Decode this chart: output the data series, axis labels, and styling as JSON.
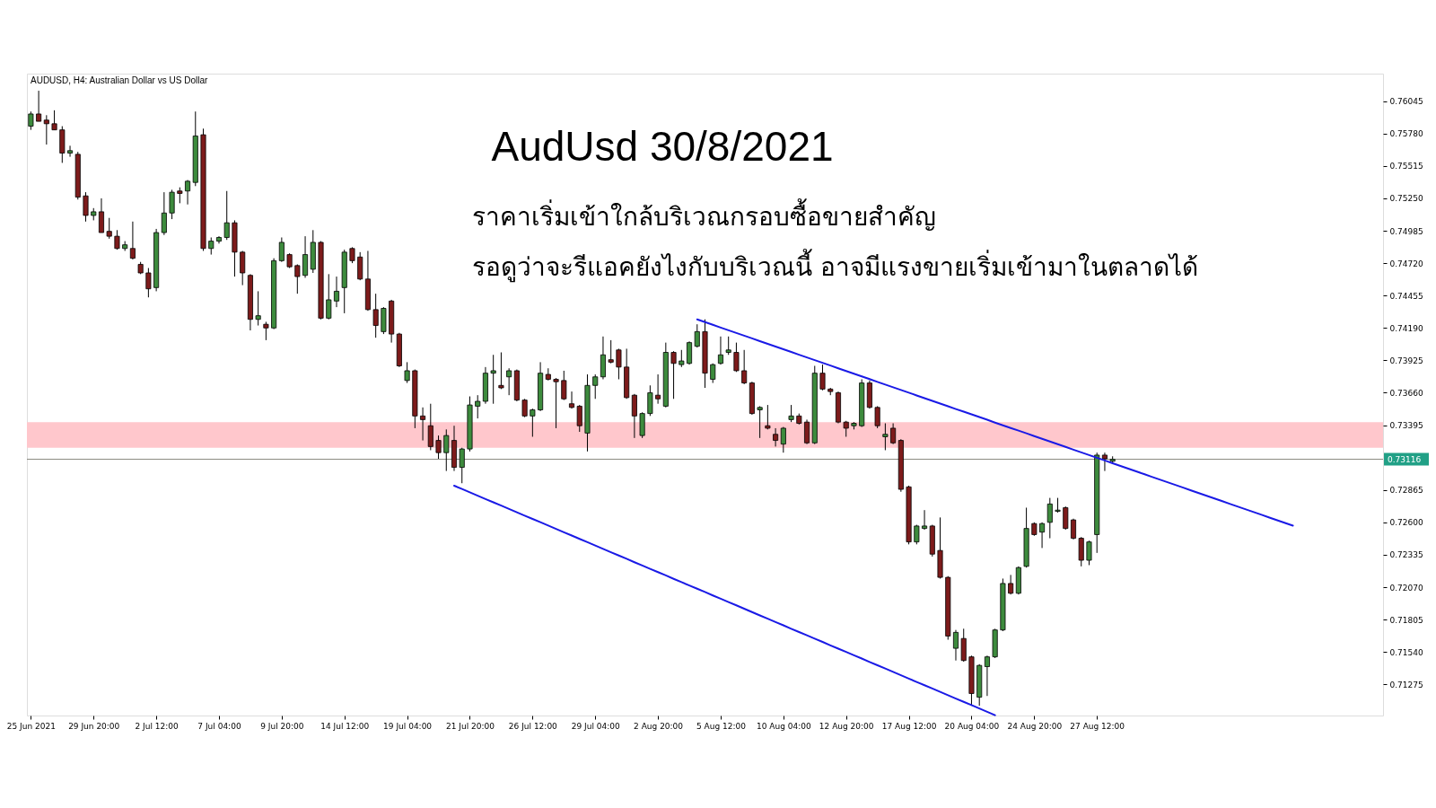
{
  "chart_data": {
    "type": "candlestick",
    "title": "AudUsd 30/8/2021",
    "annotations": [
      "AUDUSD, H4: Australian Dollar vs US Dollar",
      "ราคาเริ่มเข้าใกล้บริเวณกรอบซื้อขายสำคัญ",
      "รอดูว่าจะรีแอคยังไงกับบริเวณนี้ อาจมีแรงขายเริ่มเข้ามาในตลาดได้"
    ],
    "categories": [
      "25 Jun 2021",
      null,
      null,
      null,
      null,
      null,
      null,
      null,
      "29 Jun 20:00",
      null,
      null,
      null,
      null,
      null,
      null,
      null,
      "2 Jul 12:00",
      null,
      null,
      null,
      null,
      null,
      null,
      null,
      "7 Jul 04:00",
      null,
      null,
      null,
      null,
      null,
      null,
      null,
      "9 Jul 20:00",
      null,
      null,
      null,
      null,
      null,
      null,
      null,
      "14 Jul 12:00",
      null,
      null,
      null,
      null,
      null,
      null,
      null,
      "19 Jul 04:00",
      null,
      null,
      null,
      null,
      null,
      null,
      null,
      "21 Jul 20:00",
      null,
      null,
      null,
      null,
      null,
      null,
      null,
      "26 Jul 12:00",
      null,
      null,
      null,
      null,
      null,
      null,
      null,
      "29 Jul 04:00",
      null,
      null,
      null,
      null,
      null,
      null,
      null,
      "2 Aug 20:00",
      null,
      null,
      null,
      null,
      null,
      null,
      null,
      "5 Aug 12:00",
      null,
      null,
      null,
      null,
      null,
      null,
      null,
      "10 Aug 04:00",
      null,
      null,
      null,
      null,
      null,
      null,
      null,
      "12 Aug 20:00",
      null,
      null,
      null,
      null,
      null,
      null,
      null,
      "17 Aug 12:00",
      null,
      null,
      null,
      null,
      null,
      null,
      null,
      "20 Aug 04:00",
      null,
      null,
      null,
      null,
      null,
      null,
      null,
      "24 Aug 20:00",
      null,
      null,
      null,
      null,
      null,
      null,
      null,
      "27 Aug 12:00",
      null,
      null,
      null,
      null,
      null,
      null,
      null,
      null,
      null,
      null,
      null,
      null,
      null,
      null,
      null,
      null,
      null,
      null,
      null,
      null,
      null,
      null,
      null,
      null,
      null,
      null,
      null,
      null,
      null,
      null,
      null,
      null,
      null,
      null,
      null,
      null
    ],
    "ohlc": [
      [
        0.7584,
        0.7596,
        0.7581,
        0.7594
      ],
      [
        0.7594,
        0.7613,
        0.7588,
        0.7588
      ],
      [
        0.7589,
        0.7593,
        0.7569,
        0.7586
      ],
      [
        0.7586,
        0.7597,
        0.7581,
        0.7581
      ],
      [
        0.7581,
        0.7584,
        0.7554,
        0.7562
      ],
      [
        0.7562,
        0.7568,
        0.7559,
        0.7564
      ],
      [
        0.7561,
        0.7563,
        0.7524,
        0.7526
      ],
      [
        0.7527,
        0.753,
        0.7506,
        0.7511
      ],
      [
        0.7511,
        0.7517,
        0.7507,
        0.7514
      ],
      [
        0.7514,
        0.7525,
        0.7497,
        0.7497
      ],
      [
        0.7498,
        0.7509,
        0.7492,
        0.7494
      ],
      [
        0.7494,
        0.7499,
        0.7483,
        0.7484
      ],
      [
        0.7484,
        0.749,
        0.7482,
        0.7487
      ],
      [
        0.7484,
        0.7506,
        0.7475,
        0.7476
      ],
      [
        0.7471,
        0.7473,
        0.7463,
        0.7464
      ],
      [
        0.7464,
        0.7468,
        0.7444,
        0.7451
      ],
      [
        0.7452,
        0.75,
        0.7449,
        0.7497
      ],
      [
        0.7497,
        0.753,
        0.7495,
        0.7513
      ],
      [
        0.7513,
        0.7532,
        0.7508,
        0.753
      ],
      [
        0.7531,
        0.7534,
        0.7521,
        0.7529
      ],
      [
        0.7531,
        0.754,
        0.752,
        0.7539
      ],
      [
        0.7538,
        0.7596,
        0.7535,
        0.7576
      ],
      [
        0.7577,
        0.7582,
        0.7482,
        0.7484
      ],
      [
        0.7484,
        0.7493,
        0.7479,
        0.749
      ],
      [
        0.749,
        0.7494,
        0.7488,
        0.7493
      ],
      [
        0.7493,
        0.7531,
        0.7491,
        0.7505
      ],
      [
        0.7505,
        0.7507,
        0.7461,
        0.7481
      ],
      [
        0.7481,
        0.7482,
        0.7454,
        0.7464
      ],
      [
        0.7462,
        0.7463,
        0.7417,
        0.7426
      ],
      [
        0.7426,
        0.7449,
        0.7421,
        0.7429
      ],
      [
        0.7422,
        0.7424,
        0.7409,
        0.7419
      ],
      [
        0.7419,
        0.7476,
        0.7418,
        0.7474
      ],
      [
        0.7474,
        0.7493,
        0.7473,
        0.7489
      ],
      [
        0.7479,
        0.748,
        0.7468,
        0.7469
      ],
      [
        0.747,
        0.7471,
        0.7447,
        0.7461
      ],
      [
        0.7462,
        0.7494,
        0.746,
        0.7479
      ],
      [
        0.7467,
        0.7499,
        0.7464,
        0.7489
      ],
      [
        0.7489,
        0.749,
        0.7426,
        0.7427
      ],
      [
        0.7427,
        0.7463,
        0.7426,
        0.7442
      ],
      [
        0.7441,
        0.7461,
        0.7436,
        0.7449
      ],
      [
        0.7452,
        0.7483,
        0.7431,
        0.7481
      ],
      [
        0.7484,
        0.7485,
        0.7472,
        0.7474
      ],
      [
        0.7477,
        0.7481,
        0.7458,
        0.7459
      ],
      [
        0.7459,
        0.7482,
        0.7433,
        0.7434
      ],
      [
        0.7434,
        0.7447,
        0.7411,
        0.7421
      ],
      [
        0.7416,
        0.7436,
        0.7414,
        0.7435
      ],
      [
        0.7441,
        0.7442,
        0.7407,
        0.7414
      ],
      [
        0.7414,
        0.7415,
        0.7387,
        0.7388
      ],
      [
        0.7376,
        0.7391,
        0.7374,
        0.7384
      ],
      [
        0.7384,
        0.7385,
        0.7337,
        0.7347
      ],
      [
        0.7347,
        0.7354,
        0.7327,
        0.7344
      ],
      [
        0.7339,
        0.7357,
        0.7319,
        0.7322
      ],
      [
        0.7327,
        0.7331,
        0.7312,
        0.7317
      ],
      [
        0.7317,
        0.7336,
        0.7302,
        0.7331
      ],
      [
        0.7327,
        0.7339,
        0.7302,
        0.7305
      ],
      [
        0.7305,
        0.7321,
        0.7292,
        0.732
      ],
      [
        0.732,
        0.7363,
        0.7318,
        0.7356
      ],
      [
        0.7355,
        0.7364,
        0.7345,
        0.7359
      ],
      [
        0.7359,
        0.7387,
        0.7357,
        0.7382
      ],
      [
        0.7382,
        0.7397,
        0.7357,
        0.7384
      ],
      [
        0.7372,
        0.7399,
        0.7369,
        0.737
      ],
      [
        0.7379,
        0.7386,
        0.7364,
        0.7384
      ],
      [
        0.7384,
        0.7385,
        0.7359,
        0.736
      ],
      [
        0.736,
        0.7361,
        0.7346,
        0.7347
      ],
      [
        0.7347,
        0.7353,
        0.733,
        0.7352
      ],
      [
        0.7352,
        0.7391,
        0.7351,
        0.7382
      ],
      [
        0.7381,
        0.7386,
        0.7376,
        0.7377
      ],
      [
        0.7377,
        0.7378,
        0.7337,
        0.7375
      ],
      [
        0.7376,
        0.7384,
        0.736,
        0.7361
      ],
      [
        0.7357,
        0.7367,
        0.7353,
        0.7354
      ],
      [
        0.7355,
        0.7356,
        0.7334,
        0.7339
      ],
      [
        0.7333,
        0.7381,
        0.7318,
        0.7372
      ],
      [
        0.7372,
        0.7381,
        0.7361,
        0.7379
      ],
      [
        0.7379,
        0.7412,
        0.7377,
        0.7397
      ],
      [
        0.7393,
        0.7409,
        0.739,
        0.7391
      ],
      [
        0.7401,
        0.7402,
        0.7377,
        0.7387
      ],
      [
        0.7387,
        0.7402,
        0.7361,
        0.7362
      ],
      [
        0.7364,
        0.7365,
        0.7329,
        0.7347
      ],
      [
        0.7331,
        0.735,
        0.7329,
        0.7349
      ],
      [
        0.7349,
        0.7372,
        0.7347,
        0.7366
      ],
      [
        0.7364,
        0.7381,
        0.7357,
        0.7361
      ],
      [
        0.7355,
        0.7407,
        0.7354,
        0.7399
      ],
      [
        0.7399,
        0.74,
        0.7361,
        0.739
      ],
      [
        0.7389,
        0.7401,
        0.7387,
        0.7392
      ],
      [
        0.739,
        0.7408,
        0.7389,
        0.7407
      ],
      [
        0.7404,
        0.7422,
        0.7403,
        0.7416
      ],
      [
        0.7416,
        0.7426,
        0.737,
        0.7382
      ],
      [
        0.7377,
        0.739,
        0.7374,
        0.7389
      ],
      [
        0.739,
        0.7412,
        0.7389,
        0.7397
      ],
      [
        0.7399,
        0.7412,
        0.7397,
        0.7401
      ],
      [
        0.7399,
        0.7407,
        0.7383,
        0.7384
      ],
      [
        0.7384,
        0.7401,
        0.7373,
        0.7374
      ],
      [
        0.7374,
        0.7375,
        0.7348,
        0.7349
      ],
      [
        0.7352,
        0.7355,
        0.7329,
        0.7354
      ],
      [
        0.7339,
        0.7356,
        0.7336,
        0.7337
      ],
      [
        0.7332,
        0.7337,
        0.7322,
        0.7327
      ],
      [
        0.7324,
        0.7338,
        0.7317,
        0.7337
      ],
      [
        0.7344,
        0.7356,
        0.7342,
        0.7347
      ],
      [
        0.7347,
        0.7349,
        0.734,
        0.7341
      ],
      [
        0.7342,
        0.7344,
        0.7324,
        0.7325
      ],
      [
        0.7325,
        0.7388,
        0.7324,
        0.7382
      ],
      [
        0.7382,
        0.7389,
        0.7368,
        0.7369
      ],
      [
        0.7369,
        0.737,
        0.7364,
        0.7367
      ],
      [
        0.7366,
        0.7367,
        0.7341,
        0.7342
      ],
      [
        0.7342,
        0.7343,
        0.733,
        0.7337
      ],
      [
        0.7339,
        0.7342,
        0.7336,
        0.7341
      ],
      [
        0.7339,
        0.7377,
        0.7338,
        0.7374
      ],
      [
        0.7374,
        0.7376,
        0.7353,
        0.7354
      ],
      [
        0.7354,
        0.7355,
        0.7337,
        0.7339
      ],
      [
        0.733,
        0.7341,
        0.7319,
        0.7332
      ],
      [
        0.7337,
        0.7341,
        0.7324,
        0.7325
      ],
      [
        0.7327,
        0.7328,
        0.7285,
        0.7287
      ],
      [
        0.7289,
        0.729,
        0.7242,
        0.7244
      ],
      [
        0.7244,
        0.7258,
        0.7242,
        0.7257
      ],
      [
        0.7255,
        0.727,
        0.7254,
        0.7257
      ],
      [
        0.7257,
        0.7258,
        0.7232,
        0.7234
      ],
      [
        0.7237,
        0.7264,
        0.7214,
        0.7215
      ],
      [
        0.7215,
        0.7216,
        0.7164,
        0.7167
      ],
      [
        0.7157,
        0.7172,
        0.7147,
        0.717
      ],
      [
        0.7165,
        0.7173,
        0.7146,
        0.7147
      ],
      [
        0.715,
        0.7151,
        0.711,
        0.712
      ],
      [
        0.7117,
        0.7144,
        0.711,
        0.7143
      ],
      [
        0.7142,
        0.7151,
        0.7118,
        0.715
      ],
      [
        0.715,
        0.7173,
        0.7149,
        0.7172
      ],
      [
        0.7172,
        0.7214,
        0.7171,
        0.721
      ],
      [
        0.721,
        0.7217,
        0.7201,
        0.7202
      ],
      [
        0.7202,
        0.7224,
        0.7201,
        0.7223
      ],
      [
        0.7224,
        0.7272,
        0.7223,
        0.7255
      ],
      [
        0.7259,
        0.726,
        0.7249,
        0.725
      ],
      [
        0.7252,
        0.726,
        0.7239,
        0.7259
      ],
      [
        0.726,
        0.728,
        0.7247,
        0.7275
      ],
      [
        0.7269,
        0.728,
        0.7268,
        0.727
      ],
      [
        0.7272,
        0.7273,
        0.7254,
        0.7255
      ],
      [
        0.7262,
        0.7263,
        0.7246,
        0.7247
      ],
      [
        0.7247,
        0.7248,
        0.7224,
        0.7229
      ],
      [
        0.7229,
        0.7245,
        0.7225,
        0.7244
      ],
      [
        0.725,
        0.7317,
        0.7235,
        0.7315
      ],
      [
        0.7315,
        0.7317,
        0.7302,
        0.7312
      ],
      [
        0.731,
        0.7314,
        0.7308,
        0.73116
      ],
      null,
      null,
      null,
      null,
      null,
      null,
      null,
      null,
      null,
      null,
      null,
      null,
      null,
      null,
      null,
      null,
      null,
      null,
      null,
      null,
      null,
      null,
      null,
      null,
      null,
      null,
      null,
      null,
      null,
      null,
      null,
      null,
      null,
      null
    ],
    "colors": [
      "#3d8b3d",
      "#7d1b1b",
      "#7d1b1b",
      "#7d1b1b",
      "#7d1b1b",
      "#3d8b3d",
      "#7d1b1b",
      "#7d1b1b",
      "#3d8b3d",
      "#7d1b1b",
      "#7d1b1b",
      "#7d1b1b",
      "#3d8b3d",
      "#7d1b1b",
      "#7d1b1b",
      "#7d1b1b",
      "#3d8b3d",
      "#3d8b3d",
      "#3d8b3d",
      "#7d1b1b",
      "#3d8b3d",
      "#3d8b3d",
      "#7d1b1b",
      "#3d8b3d",
      "#3d8b3d",
      "#3d8b3d",
      "#7d1b1b",
      "#7d1b1b",
      "#7d1b1b",
      "#3d8b3d",
      "#7d1b1b",
      "#3d8b3d",
      "#3d8b3d",
      "#7d1b1b",
      "#7d1b1b",
      "#3d8b3d",
      "#3d8b3d",
      "#7d1b1b",
      "#3d8b3d",
      "#3d8b3d",
      "#3d8b3d",
      "#7d1b1b",
      "#7d1b1b",
      "#7d1b1b",
      "#7d1b1b",
      "#3d8b3d",
      "#7d1b1b",
      "#7d1b1b",
      "#3d8b3d",
      "#7d1b1b",
      "#7d1b1b",
      "#7d1b1b",
      "#7d1b1b",
      "#3d8b3d",
      "#7d1b1b",
      "#3d8b3d",
      "#3d8b3d",
      "#3d8b3d",
      "#3d8b3d",
      "#3d8b3d",
      "#7d1b1b",
      "#3d8b3d",
      "#7d1b1b",
      "#7d1b1b",
      "#3d8b3d",
      "#3d8b3d",
      "#7d1b1b",
      "#7d1b1b",
      "#7d1b1b",
      "#7d1b1b",
      "#7d1b1b",
      "#3d8b3d",
      "#3d8b3d",
      "#3d8b3d",
      "#7d1b1b",
      "#7d1b1b",
      "#7d1b1b",
      "#7d1b1b",
      "#3d8b3d",
      "#3d8b3d",
      "#7d1b1b",
      "#3d8b3d",
      "#7d1b1b",
      "#3d8b3d",
      "#3d8b3d",
      "#3d8b3d",
      "#7d1b1b",
      "#3d8b3d",
      "#3d8b3d",
      "#3d8b3d",
      "#7d1b1b",
      "#7d1b1b",
      "#7d1b1b",
      "#3d8b3d",
      "#7d1b1b",
      "#7d1b1b",
      "#3d8b3d",
      "#3d8b3d",
      "#7d1b1b",
      "#7d1b1b",
      "#3d8b3d",
      "#7d1b1b",
      "#7d1b1b",
      "#7d1b1b",
      "#7d1b1b",
      "#3d8b3d",
      "#3d8b3d",
      "#7d1b1b",
      "#7d1b1b",
      "#3d8b3d",
      "#7d1b1b",
      "#7d1b1b",
      "#7d1b1b",
      "#3d8b3d",
      "#3d8b3d",
      "#7d1b1b",
      "#7d1b1b",
      "#7d1b1b",
      "#3d8b3d",
      "#7d1b1b",
      "#7d1b1b",
      "#3d8b3d",
      "#3d8b3d",
      "#3d8b3d",
      "#3d8b3d",
      "#7d1b1b",
      "#3d8b3d",
      "#3d8b3d",
      "#7d1b1b",
      "#3d8b3d",
      "#3d8b3d",
      "#3d8b3d",
      "#7d1b1b",
      "#7d1b1b",
      "#7d1b1b",
      "#3d8b3d",
      "#3d8b3d",
      "#7d1b1b",
      "#3d8b3d",
      null,
      null,
      null,
      null,
      null,
      null,
      null,
      null,
      null,
      null,
      null,
      null,
      null,
      null,
      null,
      null,
      null,
      null,
      null,
      null,
      null,
      null,
      null,
      null,
      null,
      null,
      null,
      null,
      null,
      null,
      null,
      null,
      null,
      null
    ],
    "series": [
      {
        "type": "line",
        "color": "#1a1ae6",
        "values": [
          null,
          null,
          null,
          null,
          null,
          null,
          null,
          null,
          null,
          null,
          null,
          null,
          null,
          null,
          null,
          null,
          null,
          null,
          null,
          null,
          null,
          null,
          null,
          null,
          null,
          null,
          null,
          null,
          null,
          null,
          null,
          null,
          null,
          null,
          null,
          null,
          null,
          null,
          null,
          null,
          null,
          null,
          null,
          null,
          null,
          null,
          null,
          null,
          null,
          null,
          null,
          null,
          null,
          null,
          null,
          null,
          null,
          null,
          null,
          null,
          null,
          null,
          null,
          null,
          null,
          null,
          null,
          null,
          null,
          null,
          null,
          null,
          null,
          null,
          null,
          null,
          null,
          null,
          null,
          null,
          null,
          null,
          null,
          null,
          null,
          0.7426,
          0.74238,
          0.74216,
          0.74193,
          0.74171,
          0.74149,
          0.74127,
          0.74105,
          0.74082,
          0.7406,
          0.74038,
          0.74016,
          0.73994,
          0.73971,
          0.73949,
          0.73927,
          0.73905,
          0.73883,
          0.7386,
          0.73838,
          0.73816,
          0.73794,
          0.73772,
          0.73749,
          0.73727,
          0.73705,
          0.73683,
          0.73661,
          0.73638,
          0.73616,
          0.73594,
          0.73572,
          0.7355,
          0.73527,
          0.73505,
          0.73483,
          0.73461,
          0.73439,
          0.73416,
          0.73394,
          0.73372,
          0.7335,
          0.73328,
          0.73305,
          0.73283,
          0.73261,
          0.73239,
          0.73217,
          0.73194,
          0.73172,
          0.7315,
          0.73128,
          0.73106,
          0.73083,
          0.73061,
          0.73039,
          0.73017,
          0.72995,
          0.72972,
          0.7295,
          0.72928,
          0.72906,
          0.72884,
          0.72861,
          0.72839,
          0.72817,
          0.72795,
          0.72773,
          0.7275,
          0.72728,
          0.72706,
          0.72684,
          0.72662,
          0.72639,
          0.72617,
          0.72595,
          0.72573,
          null,
          null,
          null,
          null,
          null,
          null,
          null,
          null,
          null,
          null,
          null
        ]
      },
      {
        "type": "line",
        "color": "#1a1ae6",
        "values": [
          null,
          null,
          null,
          null,
          null,
          null,
          null,
          null,
          null,
          null,
          null,
          null,
          null,
          null,
          null,
          null,
          null,
          null,
          null,
          null,
          null,
          null,
          null,
          null,
          null,
          null,
          null,
          null,
          null,
          null,
          null,
          null,
          null,
          null,
          null,
          null,
          null,
          null,
          null,
          null,
          null,
          null,
          null,
          null,
          null,
          null,
          null,
          null,
          null,
          null,
          null,
          null,
          null,
          null,
          0.729,
          0.72873,
          0.72846,
          0.72818,
          0.72791,
          0.72764,
          0.72737,
          0.7271,
          0.72682,
          0.72655,
          0.72628,
          0.72601,
          0.72574,
          0.72546,
          0.72519,
          0.72492,
          0.72465,
          0.72438,
          0.7241,
          0.72383,
          0.72356,
          0.72329,
          0.72302,
          0.72274,
          0.72247,
          0.7222,
          0.72193,
          0.72166,
          0.72138,
          0.72111,
          0.72084,
          0.72057,
          0.7203,
          0.72002,
          0.71975,
          0.71948,
          0.71921,
          0.71894,
          0.71866,
          0.71839,
          0.71812,
          0.71785,
          0.71758,
          0.7173,
          0.71703,
          0.71676,
          0.71649,
          0.71622,
          0.71594,
          0.71567,
          0.7154,
          0.71513,
          0.71486,
          0.71458,
          0.71431,
          0.71404,
          0.71377,
          0.7135,
          0.71322,
          0.71295,
          0.71268,
          0.71241,
          0.71214,
          0.71186,
          0.71159,
          0.71132,
          0.71105,
          0.71078,
          0.7105,
          0.71023,
          null,
          null,
          null,
          null,
          null,
          null,
          null,
          null,
          null,
          null,
          null,
          null,
          null,
          null,
          null,
          null,
          null,
          null,
          null,
          null,
          null,
          null,
          null,
          null,
          null,
          null,
          null,
          null,
          null,
          null,
          null,
          null,
          null,
          null,
          null,
          null,
          null,
          null,
          null,
          null,
          null,
          null,
          null,
          null,
          null,
          null,
          null,
          null,
          null
        ]
      }
    ],
    "bands": [
      {
        "axis": "y",
        "from": 0.7321,
        "to": 0.7342,
        "color": "#ffc7cc"
      }
    ],
    "ref_lines": [
      {
        "axis": "y",
        "value": 0.73116,
        "label": "0.73116",
        "color": "#8a8a80"
      }
    ],
    "ylim": [
      0.7102,
      0.7627
    ],
    "yticks": [
      0.76045,
      {
        "value": 0.7578,
        "label": "0.75780"
      },
      0.75515,
      {
        "value": 0.7525,
        "label": "0.75250"
      },
      0.74985,
      {
        "value": 0.7472,
        "label": "0.74720"
      },
      0.74455,
      {
        "value": 0.7419,
        "label": "0.74190"
      },
      0.73925,
      {
        "value": 0.7366,
        "label": "0.73660"
      },
      0.73395,
      0.72865,
      {
        "value": 0.726,
        "label": "0.72600"
      },
      0.72335,
      {
        "value": 0.7207,
        "label": "0.72070"
      },
      0.71805,
      {
        "value": 0.7154,
        "label": "0.71540"
      },
      0.71275
    ]
  }
}
